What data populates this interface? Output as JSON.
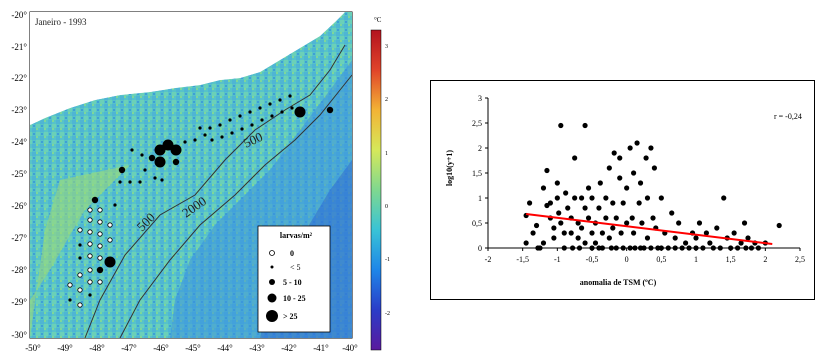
{
  "map": {
    "title": "Janeiro - 1993",
    "lat_labels": [
      "-20°",
      "-21°",
      "-22°",
      "-23°",
      "-24°",
      "-25°",
      "-26°",
      "-27°",
      "-28°",
      "-29°",
      "-30°"
    ],
    "lon_labels": [
      "-50°",
      "-49°",
      "-48°",
      "-47°",
      "-46°",
      "-45°",
      "-44°",
      "-43°",
      "-42°",
      "-41°",
      "-40°"
    ],
    "isobaths": [
      "500",
      "500",
      "2000"
    ],
    "colorbar": {
      "unit": "°C",
      "tick_labels": [
        "3",
        "2",
        "1",
        "0",
        "-1",
        "-2"
      ],
      "colors": [
        "#5a1a9e",
        "#2a3cc8",
        "#1e86e8",
        "#39c3d6",
        "#7fd88f",
        "#d6e85a",
        "#f3b335",
        "#e0442a",
        "#b3131f"
      ]
    },
    "legend": {
      "title": "larvas/m²",
      "items": [
        {
          "label": "0",
          "symbol": "open-circle"
        },
        {
          "label": "< 5",
          "symbol": "dot-tiny"
        },
        {
          "label": "5 - 10",
          "symbol": "dot-small"
        },
        {
          "label": "10 - 25",
          "symbol": "dot-medium"
        },
        {
          "label": "> 25",
          "symbol": "dot-large"
        }
      ]
    }
  },
  "chart_data": {
    "type": "scatter",
    "title": "",
    "xlabel": "anomalia de TSM (ºC)",
    "ylabel": "log10(y+1)",
    "xlim": [
      -2,
      2.5
    ],
    "ylim": [
      0,
      3
    ],
    "x_ticks": [
      "-2",
      "-1,5",
      "-1",
      "-0,5",
      "0",
      "0,5",
      "1",
      "1,5",
      "2",
      "2,5"
    ],
    "y_ticks": [
      "0",
      "0,5",
      "1",
      "1,5",
      "2",
      "2,5",
      "3"
    ],
    "annotation": "r = -0,24",
    "grid": false,
    "series": [
      {
        "marker_color": "#000000",
        "points": [
          [
            -1.45,
            0.65
          ],
          [
            -1.45,
            0.1
          ],
          [
            -1.4,
            0.9
          ],
          [
            -1.35,
            0.3
          ],
          [
            -1.3,
            0.45
          ],
          [
            -1.28,
            0.0
          ],
          [
            -1.25,
            0.0
          ],
          [
            -1.2,
            0.1
          ],
          [
            -1.2,
            1.2
          ],
          [
            -1.15,
            0.85
          ],
          [
            -1.15,
            1.55
          ],
          [
            -1.1,
            0.6
          ],
          [
            -1.1,
            0.9
          ],
          [
            -1.05,
            0.2
          ],
          [
            -1.05,
            0.4
          ],
          [
            -1.0,
            1.3
          ],
          [
            -1.0,
            1.0
          ],
          [
            -0.98,
            0.7
          ],
          [
            -0.95,
            2.45
          ],
          [
            -0.95,
            0.5
          ],
          [
            -0.9,
            0.3
          ],
          [
            -0.9,
            0.0
          ],
          [
            -0.88,
            1.1
          ],
          [
            -0.85,
            0.8
          ],
          [
            -0.8,
            0.6
          ],
          [
            -0.8,
            0.3
          ],
          [
            -0.78,
            0.0
          ],
          [
            -0.75,
            1.0
          ],
          [
            -0.75,
            1.8
          ],
          [
            -0.7,
            0.5
          ],
          [
            -0.7,
            0.2
          ],
          [
            -0.68,
            0.0
          ],
          [
            -0.65,
            0.4
          ],
          [
            -0.65,
            1.0
          ],
          [
            -0.6,
            2.45
          ],
          [
            -0.6,
            0.8
          ],
          [
            -0.6,
            0.1
          ],
          [
            -0.55,
            0.6
          ],
          [
            -0.55,
            1.2
          ],
          [
            -0.5,
            0.3
          ],
          [
            -0.5,
            0.0
          ],
          [
            -0.5,
            1.0
          ],
          [
            -0.45,
            0.5
          ],
          [
            -0.45,
            0.1
          ],
          [
            -0.4,
            0.8
          ],
          [
            -0.4,
            0.0
          ],
          [
            -0.38,
            1.3
          ],
          [
            -0.35,
            0.3
          ],
          [
            -0.35,
            0.0
          ],
          [
            -0.3,
            1.0
          ],
          [
            -0.3,
            0.6
          ],
          [
            -0.25,
            0.2
          ],
          [
            -0.25,
            1.6
          ],
          [
            -0.22,
            0.0
          ],
          [
            -0.2,
            0.4
          ],
          [
            -0.2,
            0.9
          ],
          [
            -0.18,
            1.9
          ],
          [
            -0.15,
            0.0
          ],
          [
            -0.15,
            0.6
          ],
          [
            -0.1,
            1.4
          ],
          [
            -0.1,
            1.8
          ],
          [
            -0.08,
            0.3
          ],
          [
            -0.05,
            0.0
          ],
          [
            -0.05,
            0.9
          ],
          [
            0.0,
            1.2
          ],
          [
            0.0,
            0.5
          ],
          [
            0.05,
            0.0
          ],
          [
            0.05,
            2.0
          ],
          [
            0.08,
            0.6
          ],
          [
            0.1,
            1.5
          ],
          [
            0.1,
            0.3
          ],
          [
            0.12,
            0.0
          ],
          [
            0.15,
            2.1
          ],
          [
            0.18,
            0.9
          ],
          [
            0.2,
            0.0
          ],
          [
            0.2,
            1.3
          ],
          [
            0.22,
            0.5
          ],
          [
            0.25,
            0.0
          ],
          [
            0.28,
            1.8
          ],
          [
            0.3,
            1.0
          ],
          [
            0.3,
            0.2
          ],
          [
            0.35,
            2.0
          ],
          [
            0.35,
            0.0
          ],
          [
            0.38,
            0.6
          ],
          [
            0.4,
            1.6
          ],
          [
            0.42,
            0.4
          ],
          [
            0.45,
            0.0
          ],
          [
            0.5,
            0.0
          ],
          [
            0.5,
            1.0
          ],
          [
            0.55,
            0.3
          ],
          [
            0.6,
            0.0
          ],
          [
            0.65,
            0.7
          ],
          [
            0.7,
            0.2
          ],
          [
            0.7,
            0.0
          ],
          [
            0.75,
            0.5
          ],
          [
            0.8,
            0.0
          ],
          [
            0.85,
            0.1
          ],
          [
            0.9,
            0.0
          ],
          [
            0.95,
            0.3
          ],
          [
            1.0,
            0.0
          ],
          [
            1.0,
            0.2
          ],
          [
            1.05,
            0.5
          ],
          [
            1.1,
            0.0
          ],
          [
            1.15,
            0.3
          ],
          [
            1.2,
            0.1
          ],
          [
            1.25,
            0.0
          ],
          [
            1.3,
            0.4
          ],
          [
            1.35,
            0.0
          ],
          [
            1.4,
            1.0
          ],
          [
            1.45,
            0.2
          ],
          [
            1.5,
            0.0
          ],
          [
            1.55,
            0.3
          ],
          [
            1.6,
            0.0
          ],
          [
            1.65,
            0.1
          ],
          [
            1.7,
            0.5
          ],
          [
            1.72,
            0.0
          ],
          [
            1.75,
            0.2
          ],
          [
            1.8,
            0.0
          ],
          [
            1.85,
            0.1
          ],
          [
            1.9,
            0.0
          ],
          [
            2.0,
            0.1
          ],
          [
            2.2,
            0.45
          ]
        ]
      }
    ],
    "trendline": {
      "x": [
        -1.45,
        2.1
      ],
      "y": [
        0.68,
        0.08
      ],
      "color": "#ff0000"
    }
  }
}
